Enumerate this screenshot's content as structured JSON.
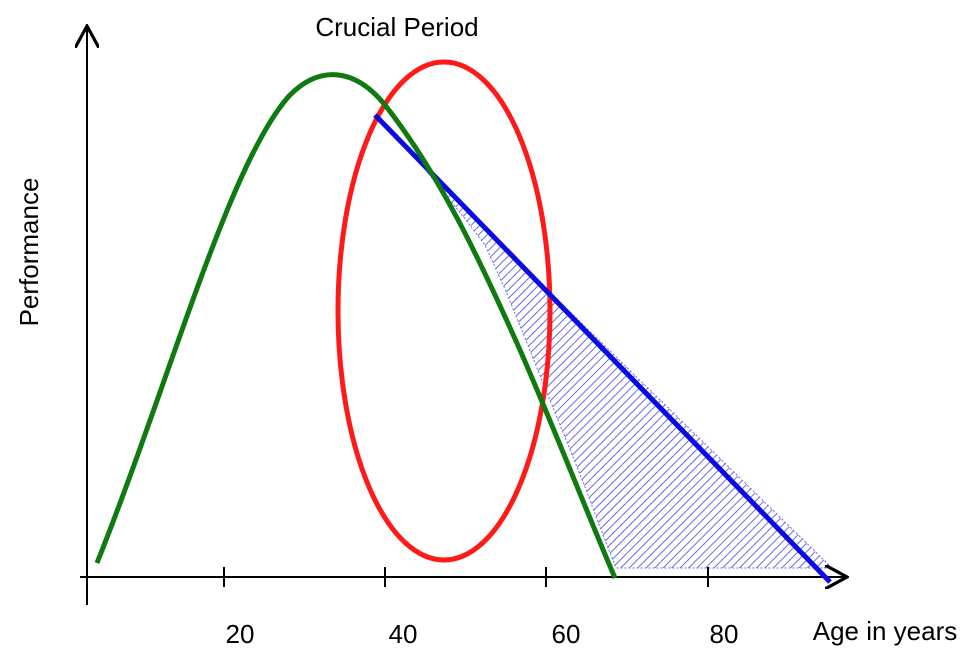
{
  "title": "Crucial Period",
  "y_label": "Performance",
  "x_label": "Age in years",
  "x_ticks": [
    "20",
    "40",
    "60",
    "80"
  ],
  "colors": {
    "green_curve": "#0f7a0f",
    "red_ellipse": "#ff1a1a",
    "blue_line": "#0a0ae6",
    "hatch": "#5050e6",
    "axis": "#000000"
  }
}
